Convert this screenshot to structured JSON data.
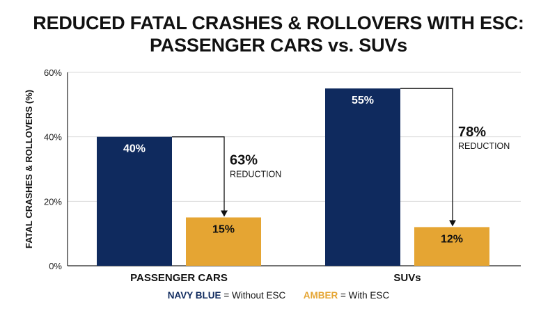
{
  "chart_data": {
    "type": "bar",
    "title": [
      "REDUCED FATAL CRASHES & ROLLOVERS WITH ESC:",
      "PASSENGER CARS vs. SUVs"
    ],
    "ylabel": "FATAL CRASHES & ROLLOVERS (%)",
    "xlabel": "",
    "ylim": [
      0,
      60
    ],
    "yticks": [
      0,
      20,
      40,
      60
    ],
    "ytick_labels": [
      "0%",
      "20%",
      "40%",
      "60%"
    ],
    "grid": true,
    "categories": [
      "PASSENGER CARS",
      "SUVs"
    ],
    "series": [
      {
        "values": [
          40,
          55
        ],
        "labels": [
          "40%",
          "55%"
        ],
        "color": "#0f2a5e"
      },
      {
        "values": [
          15,
          12
        ],
        "labels": [
          "15%",
          "12%"
        ],
        "color": "#e5a533"
      }
    ],
    "annotations": [
      {
        "category": "PASSENGER CARS",
        "value": "63%",
        "text": "REDUCTION"
      },
      {
        "category": "SUVs",
        "value": "78%",
        "text": "REDUCTION"
      }
    ]
  },
  "legend": {
    "key1": "NAVY BLUE",
    "text1": "= Without ESC",
    "key2": "AMBER",
    "text2": "= With ESC"
  }
}
